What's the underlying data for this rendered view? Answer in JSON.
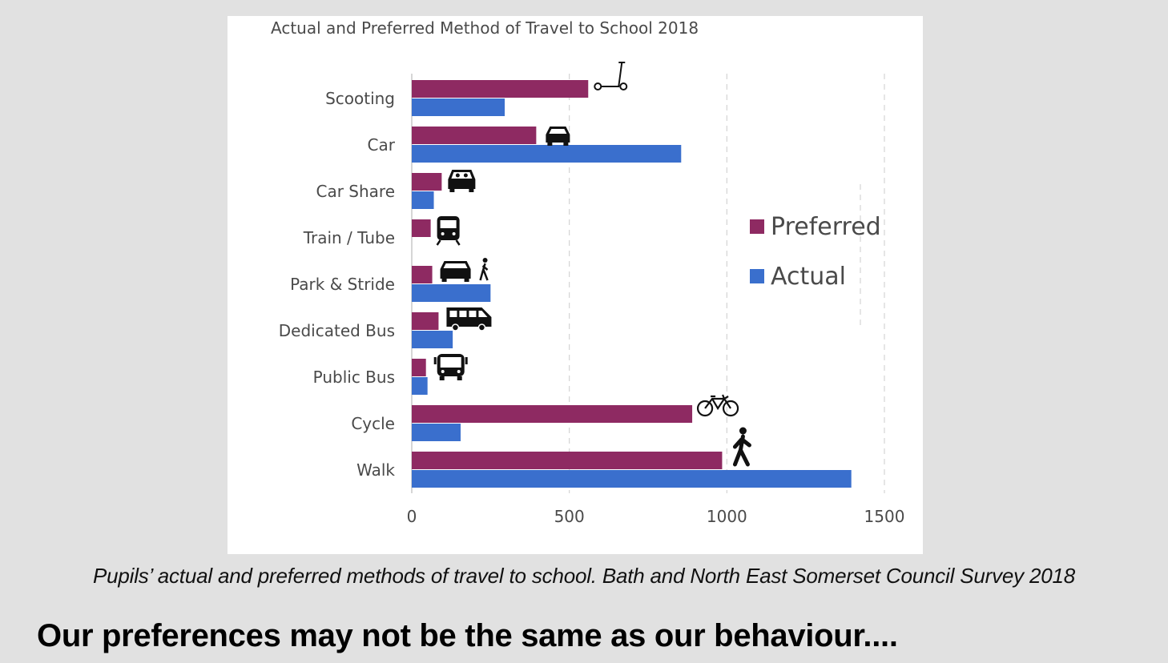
{
  "chart_data": {
    "type": "bar",
    "orientation": "horizontal",
    "title": "Actual and Preferred Method of Travel to School 2018",
    "categories": [
      "Scooting",
      "Car",
      "Car Share",
      "Train / Tube",
      "Park & Stride",
      "Dedicated Bus",
      "Public Bus",
      "Cycle",
      "Walk"
    ],
    "series": [
      {
        "name": "Preferred",
        "color": "#8e2a62",
        "values": [
          560,
          395,
          95,
          60,
          65,
          85,
          45,
          890,
          985
        ]
      },
      {
        "name": "Actual",
        "color": "#3a6fcd",
        "values": [
          295,
          855,
          70,
          0,
          250,
          130,
          50,
          155,
          1395
        ]
      }
    ],
    "icons": [
      "scooter-icon",
      "car-icon",
      "car-share-icon",
      "train-icon",
      "park-and-stride-icon",
      "minibus-icon",
      "bus-icon",
      "bicycle-icon",
      "walking-person-icon"
    ],
    "xlim": [
      0,
      1500
    ],
    "xticks": [
      0,
      500,
      1000,
      1500
    ],
    "xlabel": "",
    "ylabel": "",
    "grid": "vertical dashed",
    "legend_position": "right"
  },
  "caption": "Pupils’ actual and preferred methods of travel to school. Bath and North East Somerset Council Survey 2018",
  "headline": "Our preferences may not be the same as our behaviour...."
}
